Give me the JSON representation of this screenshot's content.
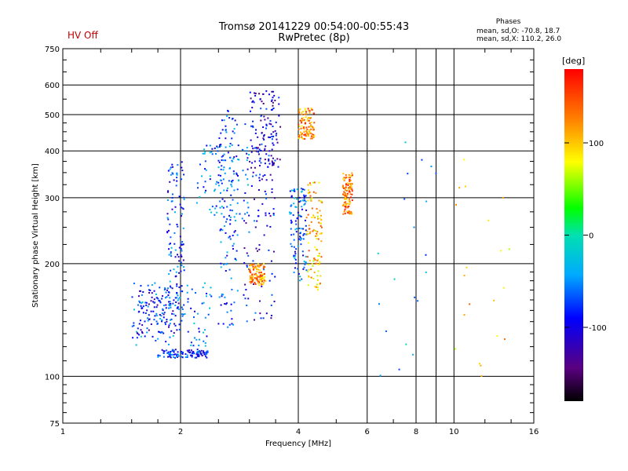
{
  "header": {
    "status": "HV Off",
    "title_line1": "Tromsø 20141229 00:54:00-00:55:43",
    "title_line2": "RwPretec (8p)"
  },
  "phase_box": {
    "title": "Phases",
    "o_line": "mean, sd,O: -70.8, 18.7",
    "x_line": "mean, sd,X: 110.2, 26.0"
  },
  "chart_data": {
    "type": "scatter",
    "xlabel": "Frequency [MHz]",
    "ylabel": "Stationary phase Virtual Height [km]",
    "xscale": "log",
    "yscale": "log",
    "xlim": [
      1,
      16
    ],
    "ylim": [
      75,
      750
    ],
    "xticks": [
      1,
      2,
      4,
      6,
      8,
      10,
      16
    ],
    "xtick_labels": [
      "1",
      "2",
      "4",
      "6",
      "8",
      "10",
      "16"
    ],
    "yticks": [
      75,
      100,
      200,
      300,
      400,
      500,
      600,
      750
    ],
    "ytick_labels": [
      "75",
      "100",
      "200",
      "300",
      "400",
      "500",
      "600",
      "750"
    ],
    "grid_x": [
      2,
      4,
      6,
      8,
      9,
      10
    ],
    "grid_y": [
      100,
      200,
      300,
      400,
      500,
      600
    ],
    "colorbar": {
      "unit": "[deg]",
      "range": [
        -180,
        180
      ],
      "ticks": [
        -100,
        0,
        100
      ],
      "tick_labels": [
        "-100",
        "0",
        "100"
      ]
    },
    "point_groups": [
      {
        "name": "O-trace-low",
        "phase": -85,
        "f": [
          1.75,
          2.35
        ],
        "h": [
          112,
          118
        ]
      },
      {
        "name": "O-trace-low",
        "phase": -60,
        "f": [
          1.5,
          2.4
        ],
        "h": [
          120,
          180
        ]
      },
      {
        "name": "O-low",
        "phase": -90,
        "f": [
          1.55,
          2.0
        ],
        "h": [
          130,
          175
        ]
      },
      {
        "name": "O-col-1",
        "phase": -75,
        "f": [
          1.85,
          2.05
        ],
        "h": [
          150,
          380
        ]
      },
      {
        "name": "O-col-2",
        "phase": -70,
        "f": [
          2.5,
          2.8
        ],
        "h": [
          135,
          520
        ]
      },
      {
        "name": "O-mid",
        "phase": -95,
        "f": [
          2.9,
          3.5
        ],
        "h": [
          140,
          480
        ]
      },
      {
        "name": "O-top",
        "phase": -110,
        "f": [
          3.0,
          3.6
        ],
        "h": [
          360,
          580
        ]
      },
      {
        "name": "O-col-3",
        "phase": -65,
        "f": [
          3.8,
          4.2
        ],
        "h": [
          180,
          320
        ]
      },
      {
        "name": "O-upper",
        "phase": -55,
        "f": [
          2.2,
          3.0
        ],
        "h": [
          260,
          420
        ]
      },
      {
        "name": "X-cluster",
        "phase": 120,
        "f": [
          3.0,
          3.3
        ],
        "h": [
          175,
          200
        ]
      },
      {
        "name": "X-right",
        "phase": 105,
        "f": [
          4.2,
          4.6
        ],
        "h": [
          170,
          330
        ]
      },
      {
        "name": "X-upper",
        "phase": 125,
        "f": [
          4.0,
          4.4
        ],
        "h": [
          430,
          520
        ]
      },
      {
        "name": "X-far",
        "phase": 130,
        "f": [
          5.2,
          5.5
        ],
        "h": [
          270,
          350
        ]
      },
      {
        "name": "scatter",
        "phase": -40,
        "f": [
          6.4,
          9.5
        ],
        "h": [
          100,
          460
        ]
      },
      {
        "name": "scatter",
        "phase": 100,
        "f": [
          10,
          14
        ],
        "h": [
          95,
          420
        ]
      }
    ]
  }
}
